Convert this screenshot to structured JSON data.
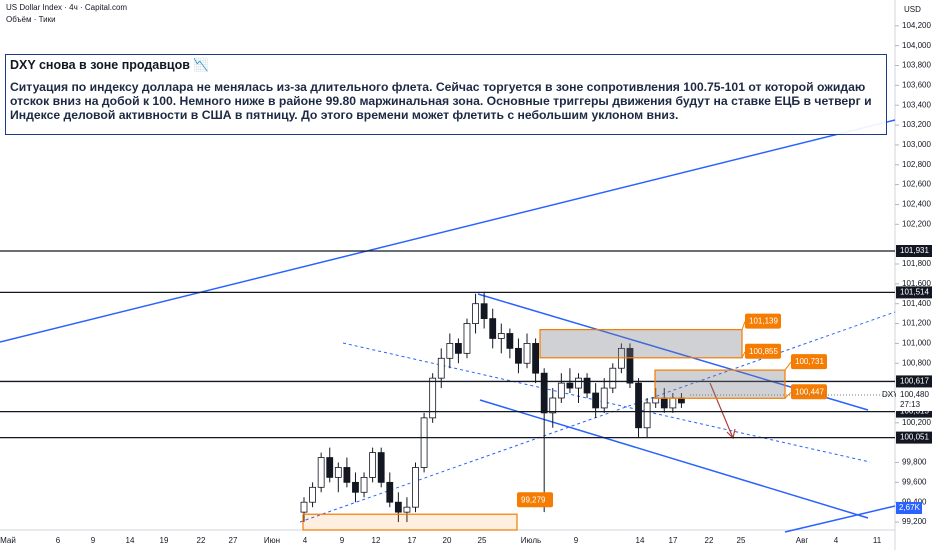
{
  "header": {
    "symbol": "US Dollar Index · 4ч · Capital.com",
    "volume": "Объём · Тики"
  },
  "note": {
    "title": "DXY снова в зоне продавцов 📉",
    "text": "Ситуация по индексу доллара не менялась из-за длительного флета. Сейчас торгуется в зоне сопротивления 100.75-101 от которой ожидаю отскок вниз на добой к 100. Немного ниже в районе 99.80 маржинальная зона. Основные триггеры движения будут на ставке ЕЦБ в четверг и Индексе деловой активности в США в пятницу. До этого времени может флетить с небольшим уклоном вниз."
  },
  "price_axis": {
    "currency": "USD",
    "ylim": [
      99.12,
      104.46
    ],
    "ticks": [
      {
        "value": 104.2,
        "label": "104,200"
      },
      {
        "value": 104,
        "label": "104,000"
      },
      {
        "value": 103.8,
        "label": "103,800"
      },
      {
        "value": 103.6,
        "label": "103,600"
      },
      {
        "value": 103.4,
        "label": "103,400"
      },
      {
        "value": 103.2,
        "label": "103,200"
      },
      {
        "value": 103,
        "label": "103,000"
      },
      {
        "value": 102.8,
        "label": "102,800"
      },
      {
        "value": 102.6,
        "label": "102,600"
      },
      {
        "value": 102.4,
        "label": "102,400"
      },
      {
        "value": 102.2,
        "label": "102,200"
      },
      {
        "value": 101.8,
        "label": "101,800"
      },
      {
        "value": 101.6,
        "label": "101,600"
      },
      {
        "value": 101.4,
        "label": "101,400"
      },
      {
        "value": 101.2,
        "label": "101,200"
      },
      {
        "value": 101,
        "label": "101,000"
      },
      {
        "value": 100.8,
        "label": "100,800"
      },
      {
        "value": 100.2,
        "label": "100,200"
      },
      {
        "value": 99.8,
        "label": "99,800"
      },
      {
        "value": 99.6,
        "label": "99,600"
      },
      {
        "value": 99.4,
        "label": "99,400"
      },
      {
        "value": 99.2,
        "label": "99,200"
      }
    ]
  },
  "levels": [
    {
      "value": 101.931,
      "label": "101,931"
    },
    {
      "value": 101.514,
      "label": "101,514"
    },
    {
      "value": 100.617,
      "label": "100,617"
    },
    {
      "value": 100.313,
      "label": "100,313"
    },
    {
      "value": 100.051,
      "label": "100,051"
    }
  ],
  "zones": [
    {
      "top": {
        "value": 101.139,
        "label": "101,139"
      },
      "bottom": {
        "value": 100.855,
        "label": "100,855"
      }
    },
    {
      "top": {
        "value": 100.731,
        "label": "100,731"
      },
      "bottom": {
        "value": 100.447,
        "label": "100,447"
      }
    }
  ],
  "support_zone": {
    "value": 99.279,
    "label": "99,279"
  },
  "last_price": {
    "symbol": "DXY",
    "value": 100.48,
    "label": "100,480",
    "countdown": "27:13"
  },
  "volume_label": "2,67K",
  "dates": [
    "Май",
    "6",
    "9",
    "14",
    "19",
    "22",
    "27",
    "Июн",
    "4",
    "9",
    "12",
    "17",
    "20",
    "25",
    "Июль",
    "9",
    "14",
    "17",
    "22",
    "25",
    "Авг",
    "4",
    "11"
  ],
  "candles": [
    [
      99.3,
      99.45,
      99.2,
      99.4
    ],
    [
      99.4,
      99.6,
      99.35,
      99.55
    ],
    [
      99.55,
      99.9,
      99.5,
      99.85
    ],
    [
      99.85,
      99.95,
      99.6,
      99.65
    ],
    [
      99.65,
      99.8,
      99.5,
      99.75
    ],
    [
      99.75,
      99.85,
      99.55,
      99.6
    ],
    [
      99.6,
      99.7,
      99.4,
      99.5
    ],
    [
      99.5,
      99.7,
      99.45,
      99.65
    ],
    [
      99.65,
      99.95,
      99.6,
      99.9
    ],
    [
      99.9,
      99.95,
      99.55,
      99.6
    ],
    [
      99.6,
      99.7,
      99.35,
      99.4
    ],
    [
      99.4,
      99.5,
      99.2,
      99.3
    ],
    [
      99.3,
      99.45,
      99.2,
      99.35
    ],
    [
      99.35,
      99.8,
      99.3,
      99.75
    ],
    [
      99.75,
      100.3,
      99.7,
      100.25
    ],
    [
      100.25,
      100.7,
      100.2,
      100.65
    ],
    [
      100.65,
      100.95,
      100.55,
      100.85
    ],
    [
      100.85,
      101.1,
      100.75,
      101
    ],
    [
      101,
      101.05,
      100.8,
      100.9
    ],
    [
      100.9,
      101.25,
      100.85,
      101.2
    ],
    [
      101.2,
      101.5,
      101.1,
      101.4
    ],
    [
      101.4,
      101.52,
      101.15,
      101.25
    ],
    [
      101.25,
      101.35,
      100.95,
      101.05
    ],
    [
      101.05,
      101.2,
      100.9,
      101.1
    ],
    [
      101.1,
      101.15,
      100.85,
      100.95
    ],
    [
      100.95,
      101.05,
      100.7,
      100.8
    ],
    [
      100.8,
      101.1,
      100.75,
      101
    ],
    [
      101,
      101.05,
      100.6,
      100.7
    ],
    [
      100.7,
      100.75,
      99.3,
      100.3
    ],
    [
      100.3,
      100.55,
      100.15,
      100.45
    ],
    [
      100.45,
      100.7,
      100.4,
      100.6
    ],
    [
      100.6,
      100.75,
      100.5,
      100.55
    ],
    [
      100.55,
      100.7,
      100.4,
      100.65
    ],
    [
      100.65,
      100.7,
      100.45,
      100.5
    ],
    [
      100.5,
      100.6,
      100.25,
      100.35
    ],
    [
      100.35,
      100.65,
      100.3,
      100.55
    ],
    [
      100.55,
      100.8,
      100.5,
      100.75
    ],
    [
      100.75,
      101,
      100.7,
      100.95
    ],
    [
      100.95,
      101,
      100.55,
      100.6
    ],
    [
      100.6,
      100.65,
      100.05,
      100.15
    ],
    [
      100.15,
      100.45,
      100.05,
      100.4
    ],
    [
      100.4,
      100.55,
      100.35,
      100.45
    ],
    [
      100.45,
      100.55,
      100.3,
      100.35
    ],
    [
      100.35,
      100.5,
      100.3,
      100.45
    ],
    [
      100.45,
      100.5,
      100.35,
      100.4
    ]
  ]
}
